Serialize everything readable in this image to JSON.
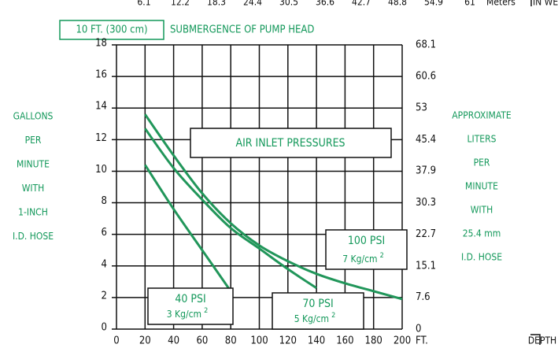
{
  "chart_data": {
    "type": "line",
    "title": "SUBMERGENCE OF PUMP HEAD",
    "submergence": "10 FT. (300 cm)",
    "annotation": "AIR INLET PRESSURES",
    "y_label": [
      "GALLONS",
      "PER",
      "MINUTE",
      "WITH",
      "1-INCH",
      "I.D. HOSE"
    ],
    "y2_label": [
      "APPROXIMATE",
      "LITERS",
      "PER",
      "MINUTE",
      "WITH",
      "25.4 mm",
      "I.D. HOSE"
    ],
    "x_unit": "FT.",
    "x_label": "DEPTH",
    "x2_unit": "Meters",
    "x2_label": "IN WELL",
    "xlim": [
      0,
      200
    ],
    "xticks": [
      0,
      20,
      40,
      60,
      80,
      100,
      120,
      140,
      160,
      180,
      200
    ],
    "x2lim": [
      6.1,
      61
    ],
    "x2ticks": [
      6.1,
      12.2,
      18.3,
      24.4,
      30.5,
      36.6,
      42.7,
      48.8,
      54.9,
      61
    ],
    "ylim": [
      0,
      18
    ],
    "yticks": [
      0,
      2,
      4,
      6,
      8,
      10,
      12,
      14,
      16,
      18
    ],
    "y2lim": [
      0,
      68.1
    ],
    "y2ticks": [
      0,
      7.6,
      15.1,
      22.7,
      30.3,
      37.9,
      45.4,
      53,
      60.6,
      68.1
    ],
    "grid": true,
    "series": [
      {
        "name": "40 PSI",
        "sublabel": "3 Kg/cm",
        "sup": "2",
        "color": "#21965a",
        "x": [
          20,
          40,
          60,
          80
        ],
        "values": [
          10.4,
          7.6,
          5.0,
          2.4
        ]
      },
      {
        "name": "70 PSI",
        "sublabel": "5 Kg/cm",
        "sup": "2",
        "color": "#21965a",
        "x": [
          20,
          40,
          60,
          80,
          100,
          120,
          140
        ],
        "values": [
          12.7,
          10.2,
          8.2,
          6.4,
          5.1,
          3.8,
          2.6
        ]
      },
      {
        "name": "100 PSI",
        "sublabel": "7 Kg/cm",
        "sup": "2",
        "color": "#21965a",
        "x": [
          20,
          40,
          60,
          80,
          100,
          120,
          140,
          160,
          180,
          200
        ],
        "values": [
          13.6,
          11.0,
          8.6,
          6.7,
          5.3,
          4.3,
          3.5,
          2.9,
          2.4,
          1.9
        ]
      }
    ]
  }
}
